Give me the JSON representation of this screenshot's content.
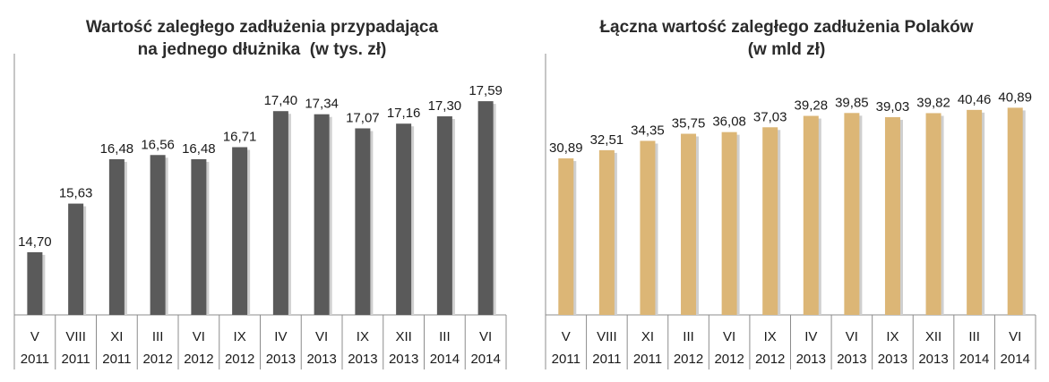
{
  "chart_data": [
    {
      "type": "bar",
      "title_lines": [
        "Wartość zaległego zadłużenia przypadająca",
        "na jednego dłużnika  (w tys. zł)"
      ],
      "categories": [
        [
          "V",
          "2011"
        ],
        [
          "VIII",
          "2011"
        ],
        [
          "XI",
          "2011"
        ],
        [
          "III",
          "2012"
        ],
        [
          "VI",
          "2012"
        ],
        [
          "IX",
          "2012"
        ],
        [
          "IV",
          "2013"
        ],
        [
          "VI",
          "2013"
        ],
        [
          "IX",
          "2013"
        ],
        [
          "XII",
          "2013"
        ],
        [
          "III",
          "2014"
        ],
        [
          "VI",
          "2014"
        ]
      ],
      "values": [
        14.7,
        15.63,
        16.48,
        16.56,
        16.48,
        16.71,
        17.4,
        17.34,
        17.07,
        17.16,
        17.3,
        17.59
      ],
      "value_labels": [
        "14,70",
        "15,63",
        "16,48",
        "16,56",
        "16,48",
        "16,71",
        "17,40",
        "17,34",
        "17,07",
        "17,16",
        "17,30",
        "17,59"
      ],
      "ylim": [
        13.5,
        17.9
      ],
      "color": "#5a5a5a",
      "grid": false,
      "legend": "none"
    },
    {
      "type": "bar",
      "title_lines": [
        "Łączna wartość zaległego zadłużenia Polaków",
        "(w mld zł)"
      ],
      "categories": [
        [
          "V",
          "2011"
        ],
        [
          "VIII",
          "2011"
        ],
        [
          "XI",
          "2011"
        ],
        [
          "III",
          "2012"
        ],
        [
          "VI",
          "2012"
        ],
        [
          "IX",
          "2012"
        ],
        [
          "IV",
          "2013"
        ],
        [
          "VI",
          "2013"
        ],
        [
          "IX",
          "2013"
        ],
        [
          "XII",
          "2013"
        ],
        [
          "III",
          "2014"
        ],
        [
          "VI",
          "2014"
        ]
      ],
      "values": [
        30.89,
        32.51,
        34.35,
        35.75,
        36.08,
        37.03,
        39.28,
        39.85,
        39.03,
        39.82,
        40.46,
        40.89
      ],
      "value_labels": [
        "30,89",
        "32,51",
        "34,35",
        "35,75",
        "36,08",
        "37,03",
        "39,28",
        "39,85",
        "39,03",
        "39,82",
        "40,46",
        "40,89"
      ],
      "ylim": [
        0,
        45.2
      ],
      "color": "#dcb676",
      "grid": false,
      "legend": "none"
    }
  ]
}
